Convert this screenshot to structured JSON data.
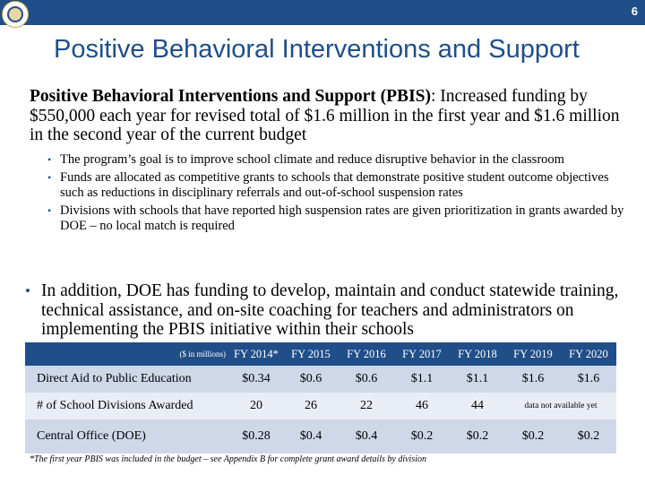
{
  "header": {
    "page_number": "6",
    "title": "Positive Behavioral Interventions and Support"
  },
  "intro": {
    "lead": "Positive Behavioral Interventions and Support (PBIS)",
    "text": ": Increased funding by $550,000 each year for revised total of $1.6 million in the first year and $1.6 million in the second year of the current budget"
  },
  "sub_bullets": [
    "The program’s goal is to improve school climate and reduce disruptive behavior in the classroom",
    "Funds are allocated as competitive grants to schools that demonstrate positive student outcome objectives such as reductions in disciplinary referrals and out-of-school suspension rates",
    "Divisions with schools that have reported high suspension rates are given prioritization in grants awarded by DOE – no local match is required"
  ],
  "main_bullet": "In addition, DOE has funding to develop, maintain and conduct statewide training, technical assistance, and on-site coaching for teachers and administrators on implementing the PBIS initiative within their schools",
  "table": {
    "unit_label": "($ in millions)",
    "headers": [
      "FY 2014*",
      "FY 2015",
      "FY 2016",
      "FY 2017",
      "FY 2018",
      "FY 2019",
      "FY 2020"
    ],
    "rows": [
      {
        "label": "Direct Aid to Public Education",
        "values": [
          "$0.34",
          "$0.6",
          "$0.6",
          "$1.1",
          "$1.1",
          "$1.6",
          "$1.6"
        ]
      },
      {
        "label": "# of School Divisions Awarded",
        "values": [
          "20",
          "26",
          "22",
          "46",
          "44"
        ],
        "note": "data not available yet"
      },
      {
        "label": "Central Office (DOE)",
        "values": [
          "$0.28",
          "$0.4",
          "$0.4",
          "$0.2",
          "$0.2",
          "$0.2",
          "$0.2"
        ]
      }
    ]
  },
  "footnote": "*The first year PBIS was included in the budget – see Appendix B for complete grant award details by division",
  "colors": {
    "accent": "#1f4e89",
    "row_dark": "#cfd8e8",
    "row_light": "#e9edf5"
  },
  "icons": {
    "logo": "state-seal-icon"
  }
}
